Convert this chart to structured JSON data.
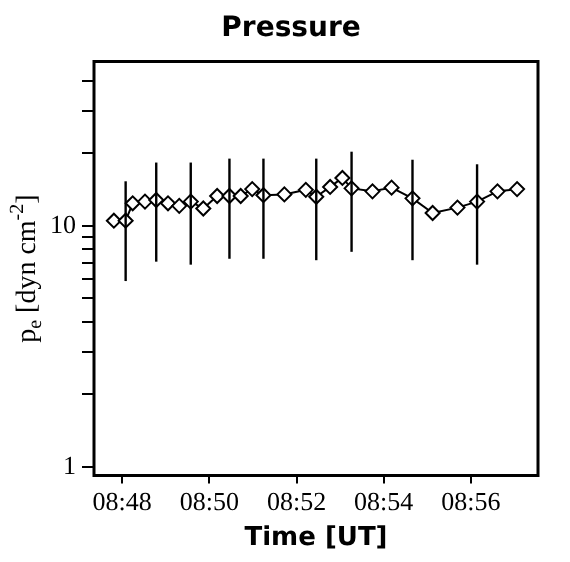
{
  "chart_data": {
    "type": "line",
    "title": "Pressure",
    "xlabel": "Time [UT]",
    "ylabel": "p$_{e}$ [dyn cm$^{-2}$]",
    "x": [
      8.7968,
      8.8013,
      8.804,
      8.8087,
      8.813,
      8.8175,
      8.8218,
      8.8262,
      8.831,
      8.8363,
      8.841,
      8.8453,
      8.8497,
      8.854,
      8.862,
      8.8702,
      8.8742,
      8.8795,
      8.8842,
      8.8877,
      8.8957,
      8.903,
      8.911,
      8.9187,
      8.9282,
      8.9357,
      8.9435,
      8.951
    ],
    "series": [
      {
        "color": "#000000",
        "values": [
          10.5,
          10.5,
          12.4,
          12.6,
          12.8,
          12.4,
          12.1,
          12.6,
          11.8,
          13.3,
          13.3,
          13.3,
          14.2,
          13.4,
          13.5,
          14.1,
          13.2,
          14.5,
          15.8,
          14.3,
          13.9,
          14.4,
          13.0,
          11.3,
          11.9,
          12.6,
          13.9,
          14.2
        ],
        "errors": [
          null,
          [
            5.9,
            15.3
          ],
          null,
          null,
          [
            7.1,
            18.3
          ],
          null,
          null,
          [
            6.9,
            18.3
          ],
          null,
          null,
          [
            7.3,
            19.0
          ],
          null,
          null,
          [
            7.3,
            19.0
          ],
          null,
          null,
          [
            7.2,
            19.0
          ],
          null,
          null,
          [
            7.8,
            20.3
          ],
          null,
          null,
          [
            7.2,
            18.8
          ],
          null,
          null,
          [
            6.9,
            18.0
          ],
          null,
          null
        ]
      }
    ],
    "xlim": [
      8.7892,
      8.959
    ],
    "xticks": [
      {
        "value": 8.8,
        "label": "08:48"
      },
      {
        "value": 8.8333,
        "label": "08:50"
      },
      {
        "value": 8.8667,
        "label": "08:52"
      },
      {
        "value": 8.9,
        "label": "08:54"
      },
      {
        "value": 8.9333,
        "label": "08:56"
      }
    ],
    "ylim": [
      0.92,
      48
    ],
    "yticks": [
      1,
      {
        "value": 2,
        "label": null
      },
      {
        "value": 3,
        "label": null
      },
      {
        "value": 4,
        "label": null
      },
      {
        "value": 5,
        "label": null
      },
      {
        "value": 6,
        "label": null
      },
      {
        "value": 7,
        "label": null
      },
      {
        "value": 8,
        "label": null
      },
      {
        "value": 9,
        "label": null
      },
      10,
      {
        "value": 20,
        "label": null
      },
      {
        "value": 30,
        "label": null
      },
      {
        "value": 40,
        "label": null
      }
    ],
    "log": true,
    "grid": false,
    "legend": false,
    "marker": "diamond",
    "line_style": "solid"
  }
}
